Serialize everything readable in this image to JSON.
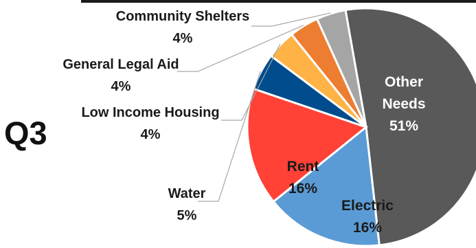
{
  "quarter_label": "Q3",
  "chart_data": {
    "type": "pie",
    "title": "",
    "slices": [
      {
        "label": "Other Needs",
        "value": 51,
        "value_label": "51%",
        "color": "#595959"
      },
      {
        "label": "Electric",
        "value": 16,
        "value_label": "16%",
        "color": "#5b9bd5"
      },
      {
        "label": "Rent",
        "value": 16,
        "value_label": "16%",
        "color": "#ff4136"
      },
      {
        "label": "Water",
        "value": 5,
        "value_label": "5%",
        "color": "#004c8c"
      },
      {
        "label": "Low Income Housing",
        "value": 4,
        "value_label": "4%",
        "color": "#ffb347"
      },
      {
        "label": "General Legal Aid",
        "value": 4,
        "value_label": "4%",
        "color": "#ed7d31"
      },
      {
        "label": "Community Shelters",
        "value": 4,
        "value_label": "4%",
        "color": "#a5a5a5"
      }
    ]
  }
}
